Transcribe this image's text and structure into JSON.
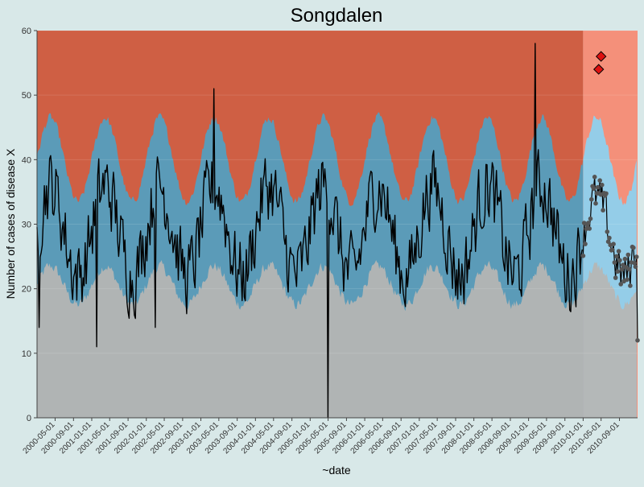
{
  "chart_data": {
    "type": "area",
    "title": "Songdalen",
    "xlabel": "~date",
    "ylabel": "Number of cases of disease X",
    "ylim": [
      0,
      60
    ],
    "yticks": [
      0,
      10,
      20,
      30,
      40,
      50,
      60
    ],
    "xlim": [
      "2000-01-01",
      "2010-12-31"
    ],
    "x_tick_labels": [
      "2000-05-01",
      "2000-09-01",
      "2001-01-01",
      "2001-05-01",
      "2001-09-01",
      "2002-01-01",
      "2002-05-01",
      "2002-09-01",
      "2003-01-01",
      "2003-05-01",
      "2003-09-01",
      "2004-01-01",
      "2004-05-01",
      "2004-09-01",
      "2005-01-01",
      "2005-05-01",
      "2005-09-01",
      "2006-01-01",
      "2006-05-01",
      "2006-09-01",
      "2007-01-01",
      "2007-05-01",
      "2007-09-01",
      "2008-01-01",
      "2008-05-01",
      "2008-09-01",
      "2009-01-01",
      "2009-05-01",
      "2009-09-01",
      "2010-01-01",
      "2010-05-01",
      "2010-09-01"
    ],
    "surveillance_start": "2010-01-01",
    "grid": true,
    "colors": {
      "background": "#d8e8e8",
      "low_band": "#b0b4b4",
      "normal_band_baseline": "#5b9bb8",
      "high_band_baseline": "#cf5f44",
      "low_band_surveillance": "#b4b8b8",
      "normal_band_surveillance": "#94cde8",
      "high_band_surveillance": "#f4907a",
      "line": "#000000",
      "surveillance_points": "#555555",
      "alert_marker": "#dd1111"
    },
    "series": [
      {
        "kind": "lower_threshold",
        "weekly_pattern": {
          "start": "2000-01-01",
          "base": 20.5,
          "seasonal_amplitude": 3.0,
          "peak_month": 3,
          "noise_amplitude": 1.2
        }
      },
      {
        "kind": "upper_threshold",
        "weekly_pattern": {
          "start": "2000-01-01",
          "base": 40.0,
          "seasonal_amplitude": 6.5,
          "peak_month": 3,
          "noise_amplitude": 1.0
        }
      },
      {
        "kind": "observed_baseline",
        "weekly_pattern": {
          "start": "2000-01-01",
          "end": "2009-12-31",
          "base": 29.0,
          "seasonal_amplitude": 7.0,
          "peak_month": 3,
          "noise_amplitude": 8.0
        },
        "notable_points": [
          {
            "date": "2000-01-15",
            "value": 14
          },
          {
            "date": "2001-02-01",
            "value": 11
          },
          {
            "date": "2002-03-01",
            "value": 14
          },
          {
            "date": "2005-05-01",
            "value": 0
          },
          {
            "date": "2003-04-01",
            "value": 51
          },
          {
            "date": "2009-02-15",
            "value": 58
          }
        ]
      },
      {
        "kind": "observed_surveillance",
        "weekly_pattern": {
          "start": "2010-01-01",
          "end": "2010-12-31",
          "base": 28.0,
          "seasonal_amplitude": 6.0,
          "peak_month": 3,
          "noise_amplitude": 5.0
        },
        "notable_points": [
          {
            "date": "2010-12-31",
            "value": 12
          }
        ]
      }
    ],
    "alerts": [
      {
        "date": "2010-04-15",
        "value": 54
      },
      {
        "date": "2010-05-01",
        "value": 56
      }
    ]
  }
}
